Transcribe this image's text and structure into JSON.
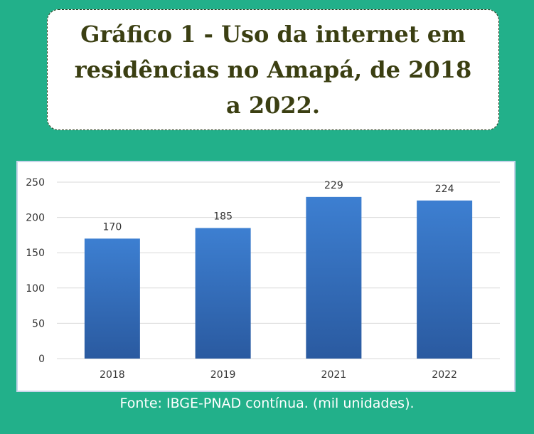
{
  "title": "Gráfico 1 - Uso da internet em residências no Amapá, de 2018 a 2022.",
  "source": "Fonte: IBGE-PNAD contínua. (mil unidades).",
  "colors": {
    "background": "#22b08a",
    "bar_top": "#3d7fd1",
    "bar_bottom": "#2a5aa0",
    "title_text": "#3b3f12"
  },
  "chart_data": {
    "type": "bar",
    "categories": [
      "2018",
      "2019",
      "2021",
      "2022"
    ],
    "values": [
      170,
      185,
      229,
      224
    ],
    "data_labels": [
      "170",
      "185",
      "229",
      "224"
    ],
    "title": "",
    "xlabel": "",
    "ylabel": "",
    "ylim": [
      0,
      250
    ],
    "yticks": [
      0,
      50,
      100,
      150,
      200,
      250
    ],
    "grid": true,
    "legend": "none"
  }
}
